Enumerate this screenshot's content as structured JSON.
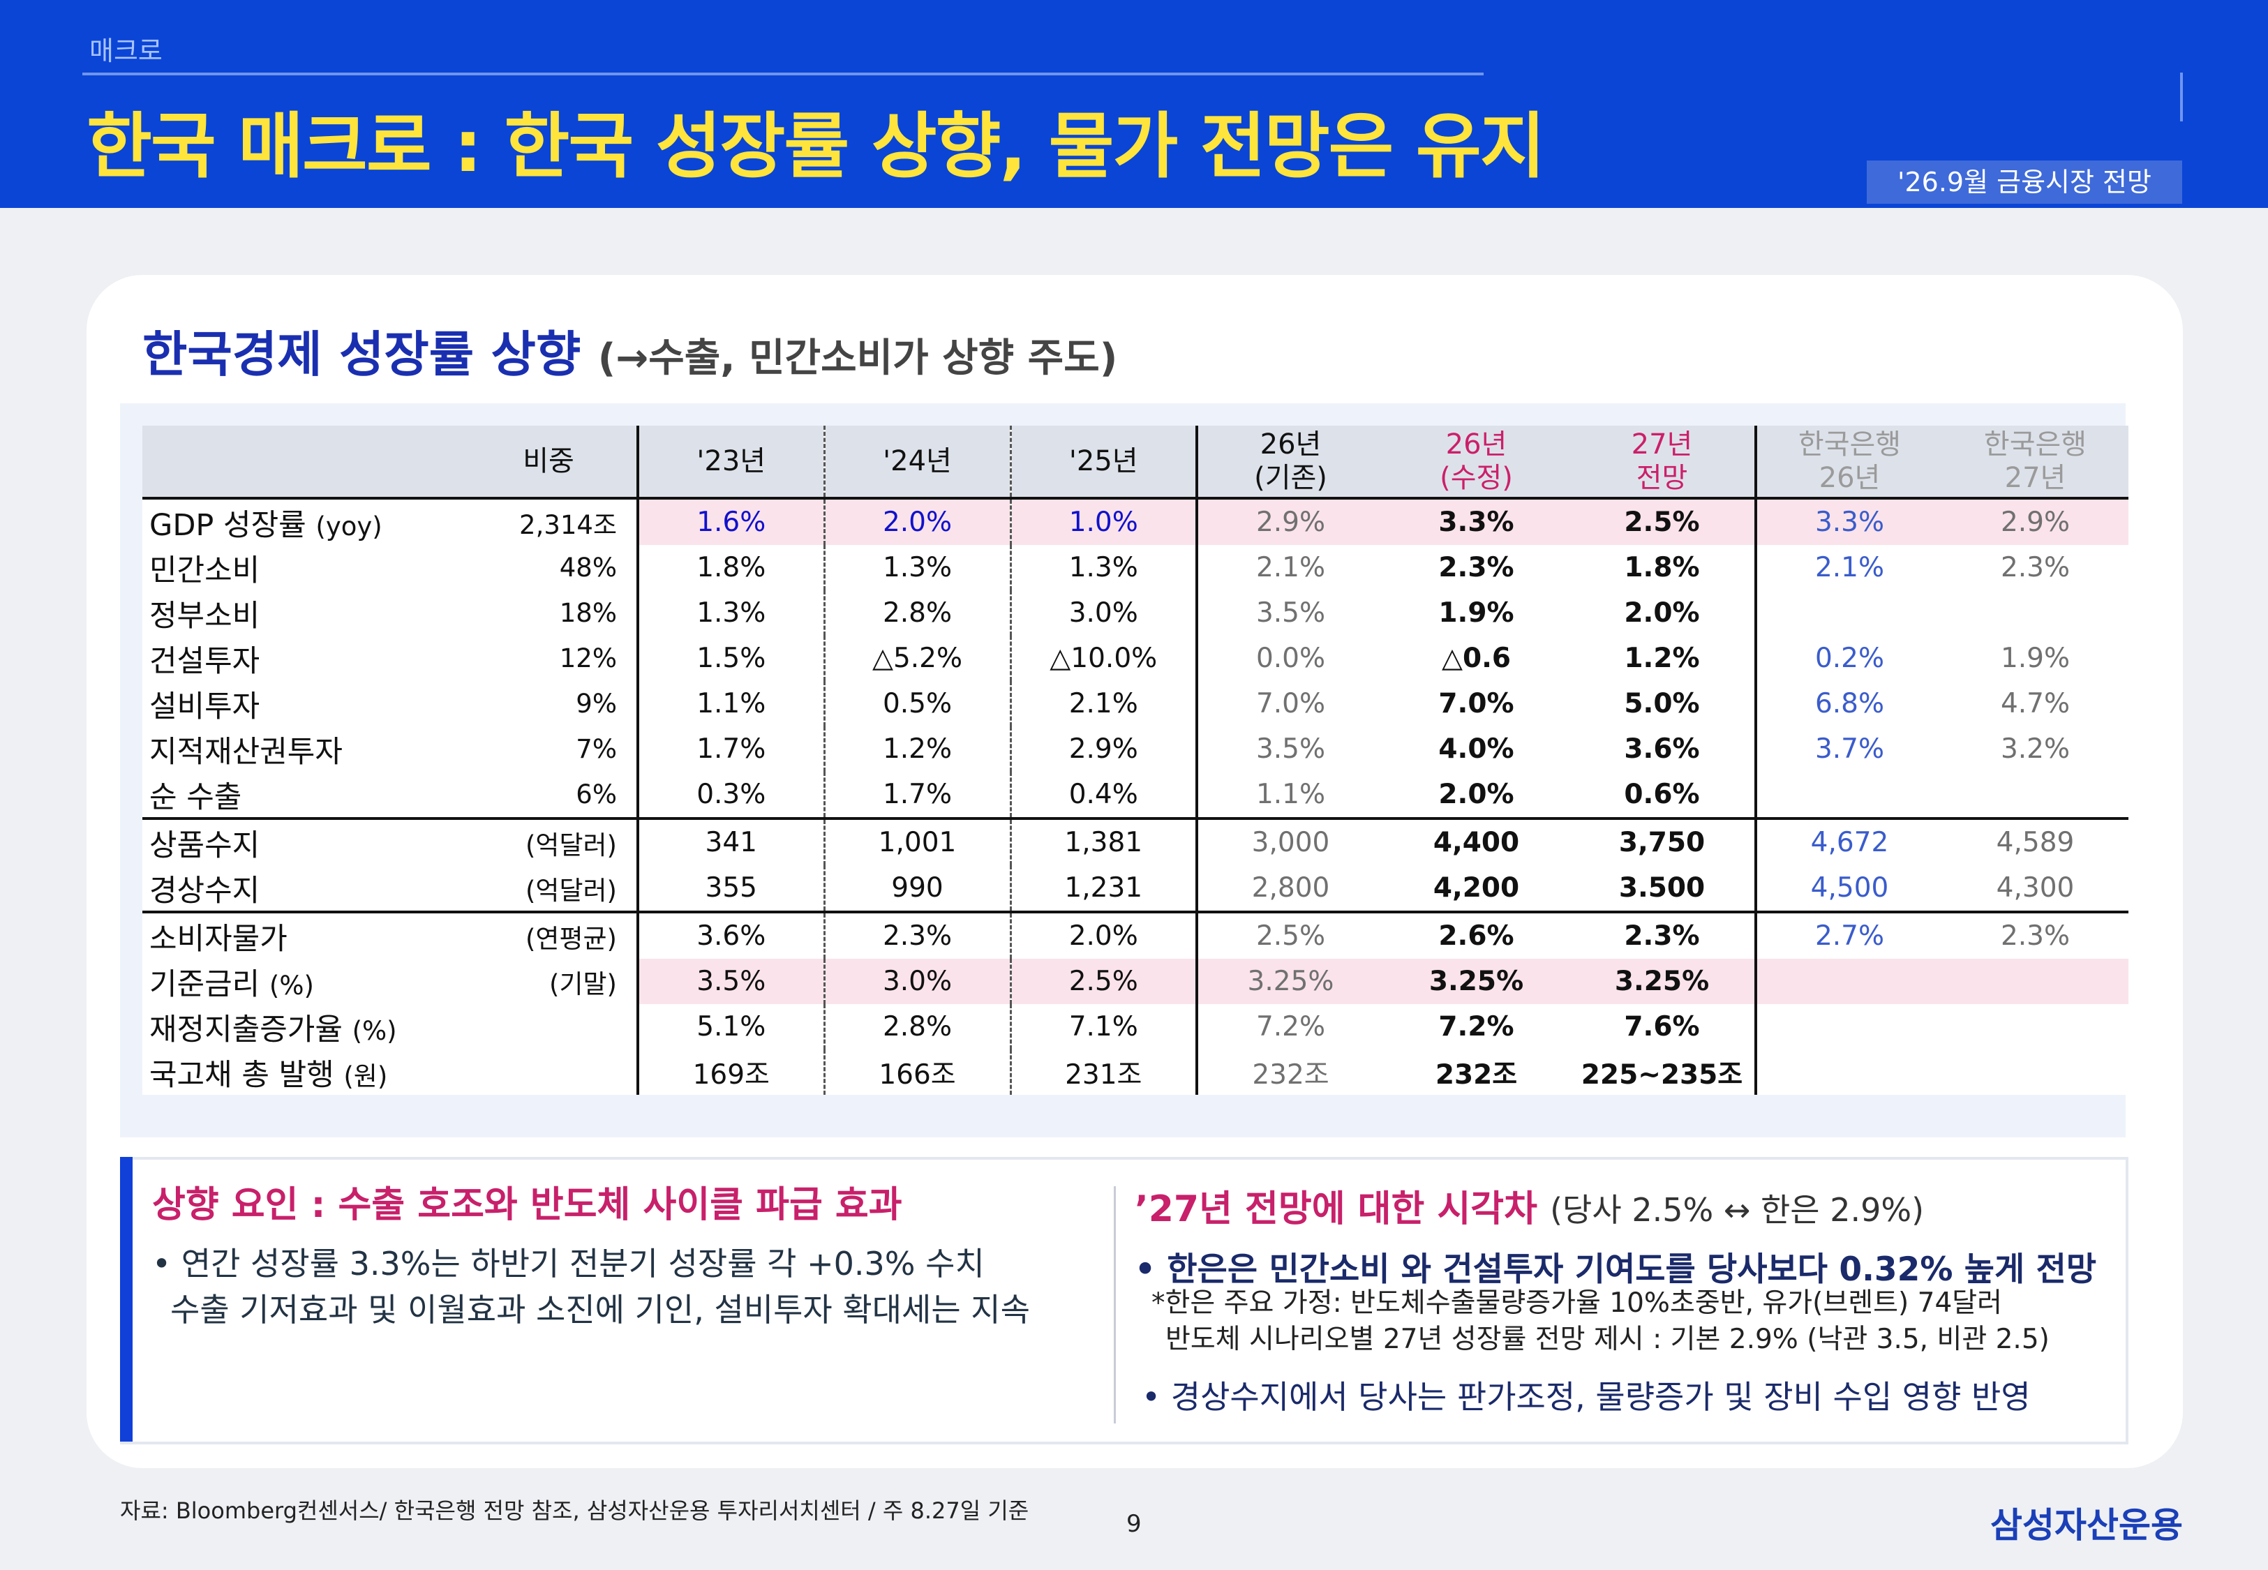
{
  "header": {
    "section": "매크로",
    "title": "한국 매크로 : 한국 성장률 상향, 물가 전망은 유지",
    "date_badge": "'26.9월 금융시장 전망"
  },
  "subtitle": {
    "main": "한국경제 성장률 상향",
    "note": "(→수출, 민간소비가 상향 주도)"
  },
  "table": {
    "headers": {
      "weight": "비중",
      "y23": "'23년",
      "y24": "'24년",
      "y25": "'25년",
      "b26_1": "26년",
      "b26_2": "(기존)",
      "r26_1": "26년",
      "r26_2": "(수정)",
      "f27_1": "27년",
      "f27_2": "전망",
      "bok26_1": "한국은행",
      "bok26_2": "26년",
      "bok27_1": "한국은행",
      "bok27_2": "27년"
    },
    "rows": [
      {
        "label": "GDP 성장률",
        "unit": "(yoy)",
        "weight": "2,314조",
        "v": [
          "1.6%",
          "2.0%",
          "1.0%",
          "2.9%",
          "3.3%",
          "2.5%",
          "3.3%",
          "2.9%"
        ]
      },
      {
        "label": "민간소비",
        "unit": "",
        "weight": "48%",
        "v": [
          "1.8%",
          "1.3%",
          "1.3%",
          "2.1%",
          "2.3%",
          "1.8%",
          "2.1%",
          "2.3%"
        ]
      },
      {
        "label": "정부소비",
        "unit": "",
        "weight": "18%",
        "v": [
          "1.3%",
          "2.8%",
          "3.0%",
          "3.5%",
          "1.9%",
          "2.0%",
          "",
          ""
        ]
      },
      {
        "label": "건설투자",
        "unit": "",
        "weight": "12%",
        "v": [
          "1.5%",
          "△5.2%",
          "△10.0%",
          "0.0%",
          "△0.6",
          "1.2%",
          "0.2%",
          "1.9%"
        ]
      },
      {
        "label": "설비투자",
        "unit": "",
        "weight": "9%",
        "v": [
          "1.1%",
          "0.5%",
          "2.1%",
          "7.0%",
          "7.0%",
          "5.0%",
          "6.8%",
          "4.7%"
        ]
      },
      {
        "label": "지적재산권투자",
        "unit": "",
        "weight": "7%",
        "v": [
          "1.7%",
          "1.2%",
          "2.9%",
          "3.5%",
          "4.0%",
          "3.6%",
          "3.7%",
          "3.2%"
        ]
      },
      {
        "label": "순 수출",
        "unit": "",
        "weight": "6%",
        "v": [
          "0.3%",
          "1.7%",
          "0.4%",
          "1.1%",
          "2.0%",
          "0.6%",
          "",
          ""
        ]
      },
      {
        "label": "상품수지",
        "unit": "",
        "weight": "(억달러)",
        "v": [
          "341",
          "1,001",
          "1,381",
          "3,000",
          "4,400",
          "3,750",
          "4,672",
          "4,589"
        ]
      },
      {
        "label": "경상수지",
        "unit": "",
        "weight": "(억달러)",
        "v": [
          "355",
          "990",
          "1,231",
          "2,800",
          "4,200",
          "3.500",
          "4,500",
          "4,300"
        ]
      },
      {
        "label": "소비자물가",
        "unit": "",
        "weight": "(연평균)",
        "v": [
          "3.6%",
          "2.3%",
          "2.0%",
          "2.5%",
          "2.6%",
          "2.3%",
          "2.7%",
          "2.3%"
        ]
      },
      {
        "label": "기준금리",
        "unit": "(%)",
        "weight": "(기말)",
        "v": [
          "3.5%",
          "3.0%",
          "2.5%",
          "3.25%",
          "3.25%",
          "3.25%",
          "",
          ""
        ]
      },
      {
        "label": "재정지출증가율",
        "unit": "(%)",
        "weight": "",
        "v": [
          "5.1%",
          "2.8%",
          "7.1%",
          "7.2%",
          "7.2%",
          "7.6%",
          "",
          ""
        ]
      },
      {
        "label": "국고채 총 발행",
        "unit": "(원)",
        "weight": "",
        "v": [
          "169조",
          "166조",
          "231조",
          "232조",
          "232조",
          "225~235조",
          "",
          ""
        ]
      }
    ]
  },
  "left_box": {
    "heading": "상향 요인 : 수출 호조와 반도체 사이클 파급 효과",
    "line1": "• 연간 성장률 3.3%는 하반기 전분기 성장률 각 +0.3% 수치",
    "line2": "수출 기저효과 및 이월효과 소진에 기인, 설비투자 확대세는 지속"
  },
  "right_box": {
    "heading": "’27년 전망에 대한 시각차",
    "heading_note": "(당사 2.5% ↔ 한은 2.9%)",
    "bullet1": "• 한은은 민간소비 와 건설투자 기여도를 당사보다 0.32% 높게 전망",
    "note1": "*한은 주요 가정: 반도체수출물량증가율 10%초중반, 유가(브렌트) 74달러",
    "note2": "반도체 시나리오별 27년 성장률 전망 제시 : 기본 2.9% (낙관 3.5, 비관 2.5)",
    "bullet2": "• 경상수지에서 당사는 판가조정, 물량증가 및 장비 수입 영향 반영"
  },
  "footer": {
    "source": "자료: Bloomberg컨센서스/ 한국은행 전망 참조, 삼성자산운용 투자리서치센터 / 주 8.27일 기준",
    "page": "9",
    "brand": "삼성자산운용"
  }
}
